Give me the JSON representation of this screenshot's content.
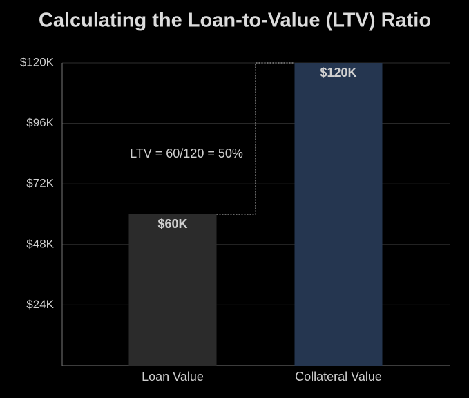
{
  "chart_data": {
    "type": "bar",
    "title": "Calculating the Loan-to-Value (LTV) Ratio",
    "categories": [
      "Loan Value",
      "Collateral Value"
    ],
    "values": [
      60000,
      120000
    ],
    "value_labels": [
      "$60K",
      "$120K"
    ],
    "colors": [
      "#2b2b2b",
      "#253650"
    ],
    "annotation": "LTV = 60/120 = 50%",
    "ylim": [
      0,
      120000
    ],
    "yticks": [
      {
        "value": 24000,
        "label": "$24K"
      },
      {
        "value": 48000,
        "label": "$48K"
      },
      {
        "value": 72000,
        "label": "$72K"
      },
      {
        "value": 96000,
        "label": "$96K"
      },
      {
        "value": 120000,
        "label": "$120K"
      }
    ],
    "grid": true
  }
}
